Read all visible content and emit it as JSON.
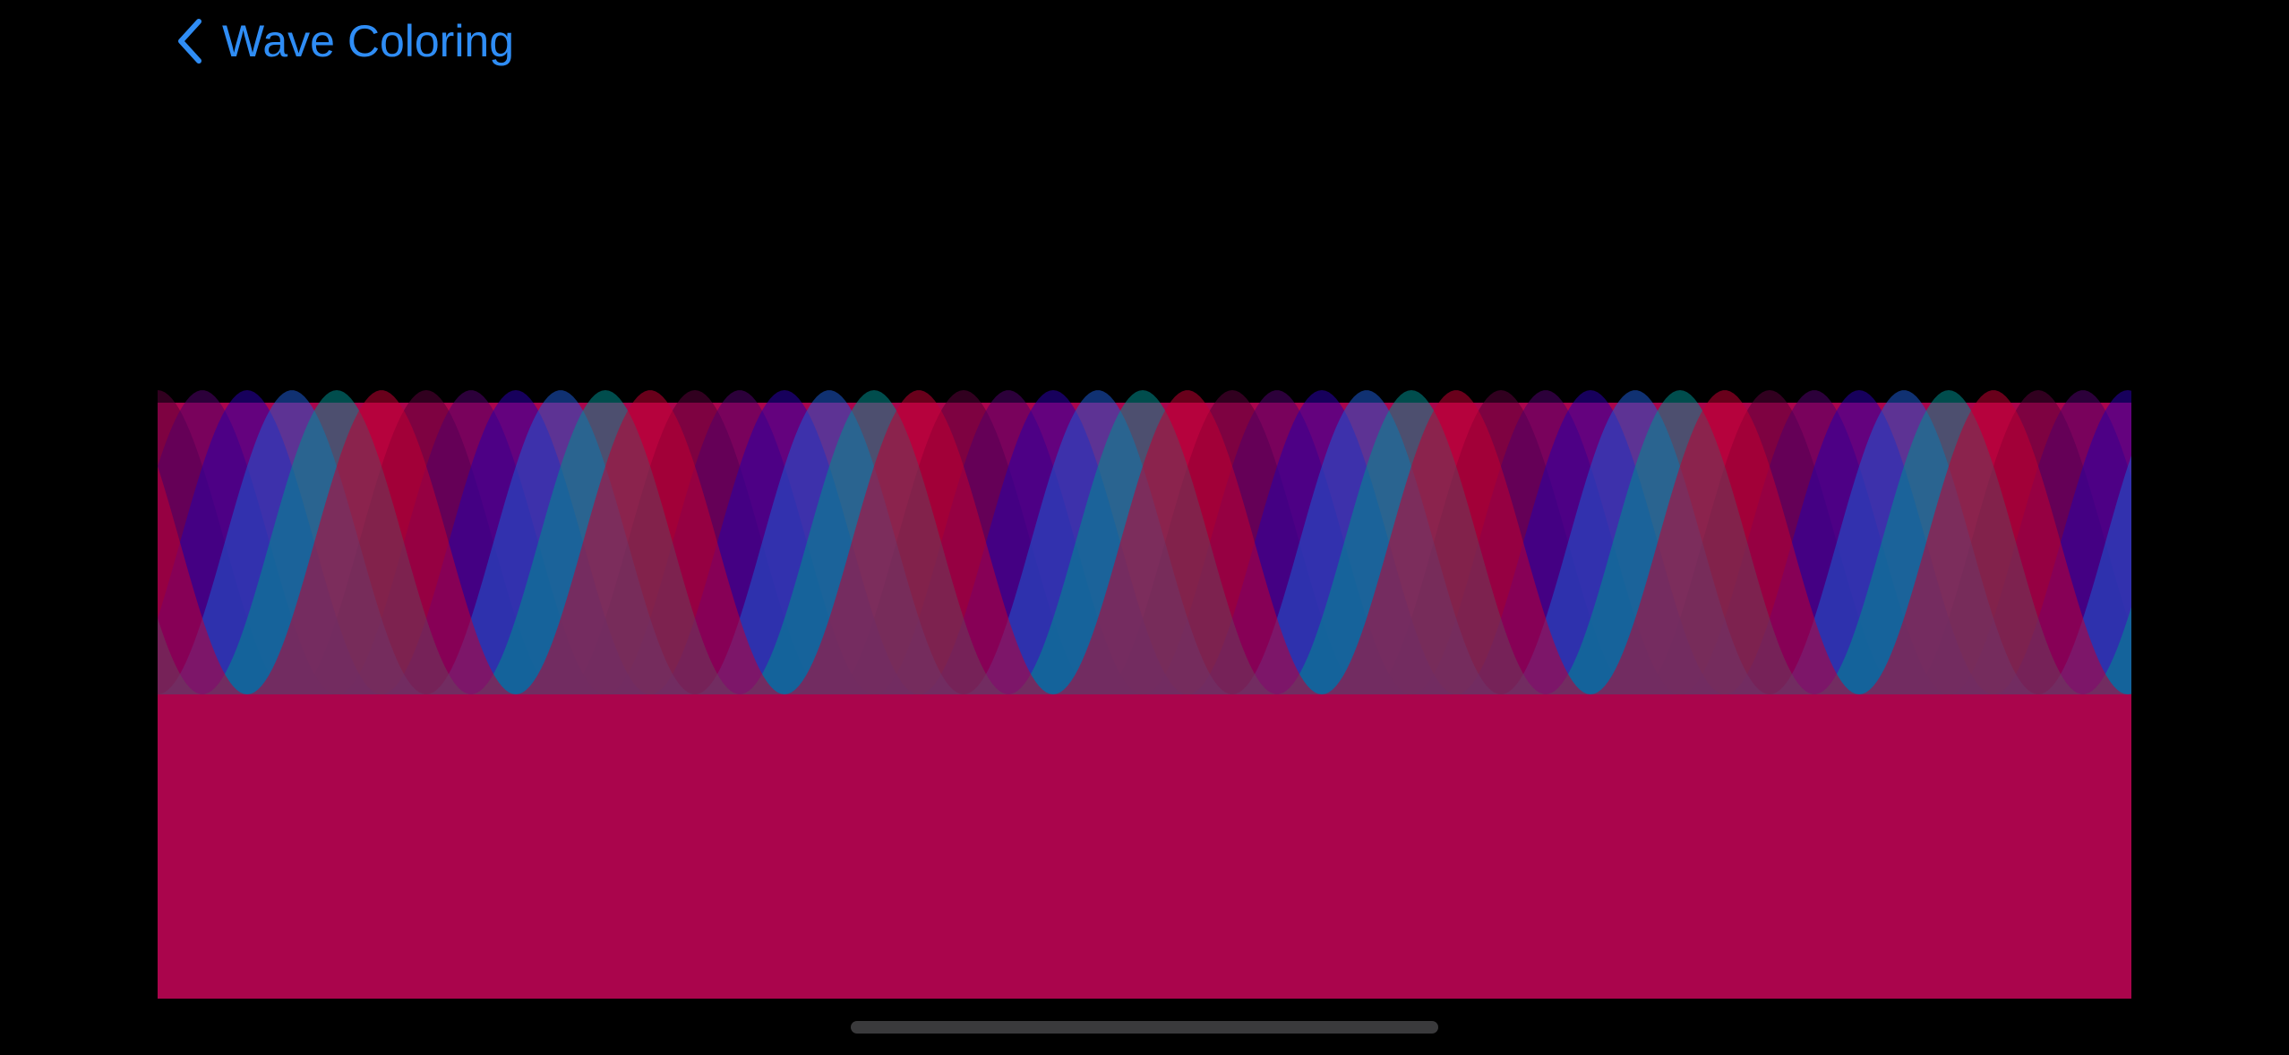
{
  "nav": {
    "back_title": "Wave Coloring",
    "back_icon": "chevron-left-icon",
    "tint_color": "#2f8df5"
  },
  "wave_view": {
    "base_color": "#aa054c",
    "background_color": "#000000",
    "wave_count": 6,
    "wave_colors": [
      "#5a0038",
      "#50006a",
      "#2a00a8",
      "#1e5ad0",
      "#008c8c",
      "#c00032"
    ],
    "wave_opacity": 0.55
  },
  "home_indicator": {
    "color": "#3a3a3c"
  }
}
